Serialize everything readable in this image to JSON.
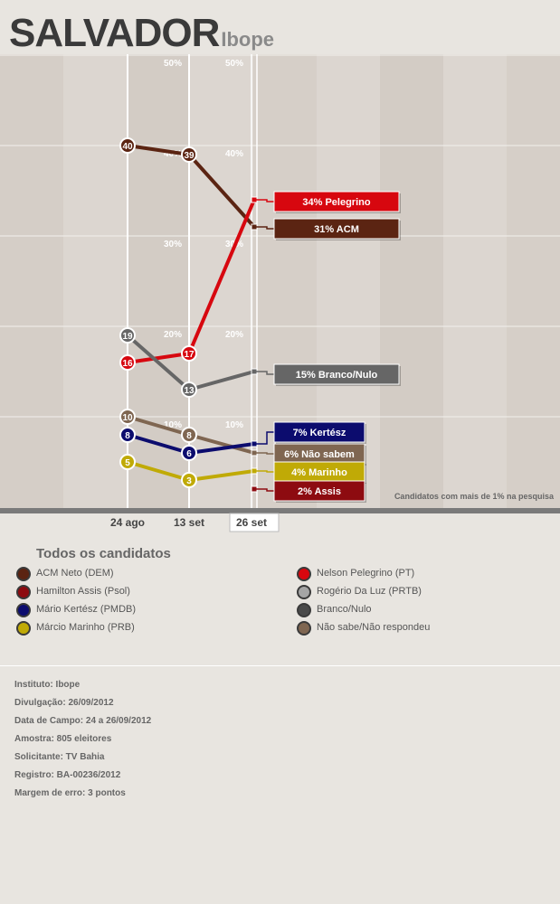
{
  "header": {
    "city": "SALVADOR",
    "institute": "Ibope"
  },
  "chart_data": {
    "type": "line",
    "x": [
      "24 ago",
      "13 set",
      "26 set"
    ],
    "highlighted_x": "26 set",
    "ylim": [
      0,
      50
    ],
    "yticks": [
      "10%",
      "20%",
      "30%",
      "40%",
      "50%"
    ],
    "note": "Candidatos com mais de 1% na pesquisa",
    "series": [
      {
        "name": "ACM",
        "values": [
          40,
          39,
          31
        ],
        "color": "#5b2412",
        "label": "31% ACM"
      },
      {
        "name": "Pelegrino",
        "values": [
          16,
          17,
          34
        ],
        "color": "#d7070f",
        "label": "34% Pelegrino"
      },
      {
        "name": "Branco/Nulo",
        "values": [
          19,
          13,
          15
        ],
        "color": "#666666",
        "label": "15% Branco/Nulo"
      },
      {
        "name": "Não sabem",
        "values": [
          10,
          8,
          6
        ],
        "color": "#7f6651",
        "label": "6% Não sabem"
      },
      {
        "name": "Kertész",
        "values": [
          8,
          6,
          7
        ],
        "color": "#0c0c6e",
        "label": "7% Kertész"
      },
      {
        "name": "Marinho",
        "values": [
          5,
          3,
          4
        ],
        "color": "#c0aa06",
        "label": "4% Marinho"
      },
      {
        "name": "Assis",
        "values": [
          null,
          null,
          2
        ],
        "color": "#8d0b10",
        "label": "2% Assis"
      }
    ]
  },
  "legend": {
    "heading": "Todos os candidatos",
    "items": [
      {
        "label": "ACM Neto (DEM)",
        "color": "#5b2412"
      },
      {
        "label": "Hamilton Assis (Psol)",
        "color": "#8d0b10"
      },
      {
        "label": "Mário Kertész (PMDB)",
        "color": "#0c0c6e"
      },
      {
        "label": "Márcio Marinho (PRB)",
        "color": "#c0aa06"
      },
      {
        "label": "Nelson Pelegrino (PT)",
        "color": "#d7070f"
      },
      {
        "label": "Rogério Da Luz (PRTB)",
        "color": "#a5a5a5"
      },
      {
        "label": "Branco/Nulo",
        "color": "#4a4a4a"
      },
      {
        "label": "Não sabe/Não respondeu",
        "color": "#7f6651"
      }
    ]
  },
  "info": [
    "Instituto: Ibope",
    "Divulgação: 26/09/2012",
    "Data de Campo: 24 a 26/09/2012",
    "Amostra: 805 eleitores",
    "Solicitante: TV Bahia",
    "Registro: BA-00236/2012",
    "Margem de erro: 3 pontos"
  ]
}
